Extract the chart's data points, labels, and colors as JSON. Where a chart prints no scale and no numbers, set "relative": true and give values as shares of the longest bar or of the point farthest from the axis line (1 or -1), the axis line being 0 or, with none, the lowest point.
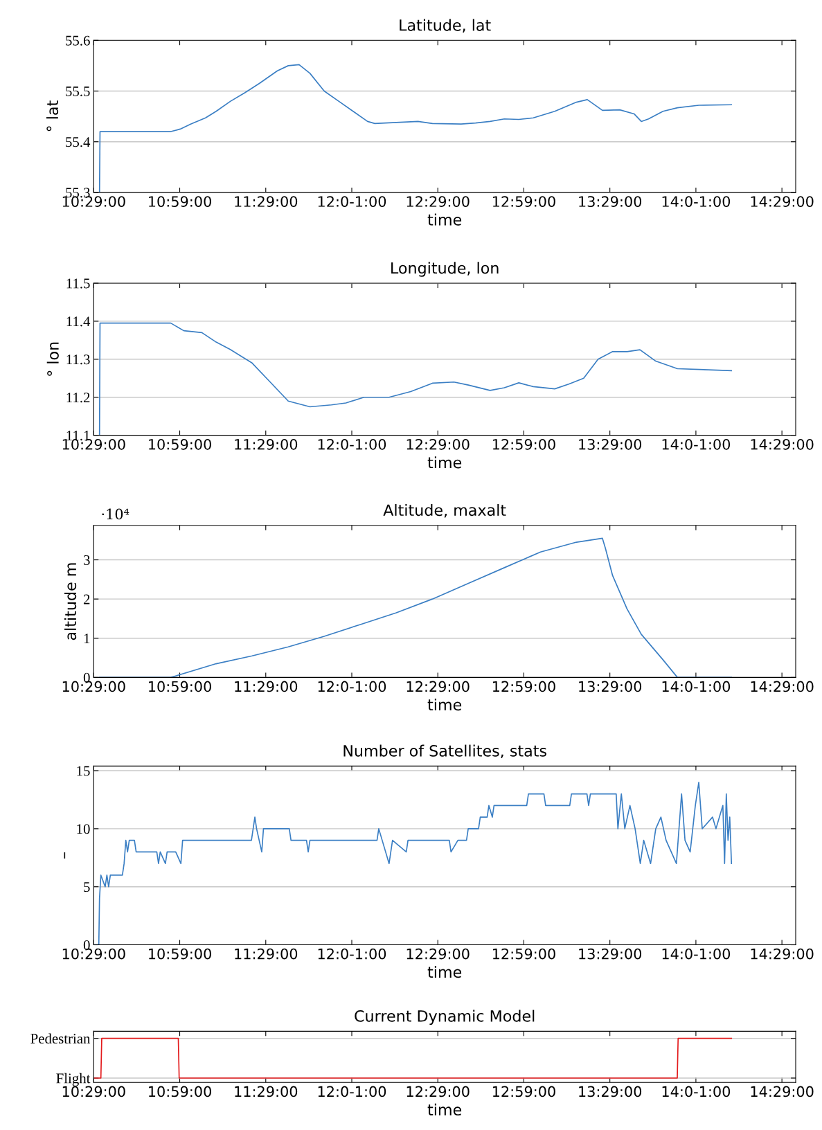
{
  "chart_data": [
    {
      "type": "line",
      "title": "Latitude, lat",
      "xlabel": "time",
      "ylabel": "° lat",
      "grid": "y",
      "xlim": [
        10.48333,
        14.56333
      ],
      "ylim": [
        55.3,
        55.6
      ],
      "yticks": [
        55.3,
        55.4,
        55.5,
        55.6
      ],
      "xticks": [
        {
          "value": 10.48333,
          "label": "10:29:00"
        },
        {
          "value": 10.98333,
          "label": "10:59:00"
        },
        {
          "value": 11.48333,
          "label": "11:29:00"
        },
        {
          "value": 11.98333,
          "label": "12:0-1:00"
        },
        {
          "value": 12.48333,
          "label": "12:29:00"
        },
        {
          "value": 12.98333,
          "label": "12:59:00"
        },
        {
          "value": 13.48333,
          "label": "13:29:00"
        },
        {
          "value": 13.98333,
          "label": "14:0-1:00"
        },
        {
          "value": 14.48333,
          "label": "14:29:00"
        }
      ],
      "series": [
        {
          "color": "#3b7fc4",
          "x": [
            10.517,
            10.52,
            10.931,
            10.986,
            11.049,
            11.133,
            11.195,
            11.279,
            11.363,
            11.446,
            11.551,
            11.614,
            11.677,
            11.74,
            11.823,
            11.907,
            11.991,
            12.075,
            12.117,
            12.242,
            12.368,
            12.452,
            12.619,
            12.703,
            12.787,
            12.87,
            12.954,
            13.038,
            13.163,
            13.289,
            13.352,
            13.44,
            13.541,
            13.624,
            13.666,
            13.708,
            13.792,
            13.876,
            14.001,
            14.19
          ],
          "values": [
            55.3,
            55.42,
            55.42,
            55.425,
            55.435,
            55.447,
            55.46,
            55.48,
            55.497,
            55.515,
            55.54,
            55.55,
            55.552,
            55.535,
            55.5,
            55.48,
            55.46,
            55.44,
            55.436,
            55.438,
            55.44,
            55.436,
            55.435,
            55.437,
            55.44,
            55.445,
            55.444,
            55.447,
            55.46,
            55.478,
            55.483,
            55.462,
            55.463,
            55.455,
            55.44,
            55.445,
            55.46,
            55.467,
            55.472,
            55.473
          ]
        }
      ]
    },
    {
      "type": "line",
      "title": "Longitude, lon",
      "xlabel": "time",
      "ylabel": "° lon",
      "grid": "y",
      "xlim": [
        10.48333,
        14.56333
      ],
      "ylim": [
        11.1,
        11.5
      ],
      "yticks": [
        11.1,
        11.2,
        11.3,
        11.4,
        11.5
      ],
      "xticks": [
        {
          "value": 10.48333,
          "label": "10:29:00"
        },
        {
          "value": 10.98333,
          "label": "10:59:00"
        },
        {
          "value": 11.48333,
          "label": "11:29:00"
        },
        {
          "value": 11.98333,
          "label": "12:0-1:00"
        },
        {
          "value": 12.48333,
          "label": "12:29:00"
        },
        {
          "value": 12.98333,
          "label": "12:59:00"
        },
        {
          "value": 13.48333,
          "label": "13:29:00"
        },
        {
          "value": 13.98333,
          "label": "14:0-1:00"
        },
        {
          "value": 14.48333,
          "label": "14:29:00"
        }
      ],
      "series": [
        {
          "color": "#3b7fc4",
          "x": [
            10.517,
            10.52,
            10.931,
            11.007,
            11.112,
            11.195,
            11.279,
            11.404,
            11.509,
            11.614,
            11.74,
            11.865,
            11.949,
            12.054,
            12.2,
            12.326,
            12.452,
            12.577,
            12.661,
            12.787,
            12.87,
            12.954,
            13.038,
            13.163,
            13.247,
            13.331,
            13.415,
            13.499,
            13.583,
            13.658,
            13.75,
            13.876,
            14.19
          ],
          "values": [
            11.1,
            11.395,
            11.395,
            11.375,
            11.37,
            11.345,
            11.325,
            11.29,
            11.24,
            11.19,
            11.175,
            11.18,
            11.185,
            11.2,
            11.2,
            11.215,
            11.237,
            11.24,
            11.232,
            11.218,
            11.225,
            11.238,
            11.228,
            11.222,
            11.235,
            11.25,
            11.3,
            11.32,
            11.32,
            11.325,
            11.295,
            11.275,
            11.27
          ]
        }
      ]
    },
    {
      "type": "line",
      "title": "Altitude, maxalt",
      "xlabel": "time",
      "ylabel": "altitude m",
      "grid": "y",
      "annotations": [
        "·10⁴"
      ],
      "xlim": [
        10.48333,
        14.56333
      ],
      "ylim": [
        0,
        3.88
      ],
      "yticks": [
        0,
        1,
        2,
        3
      ],
      "xticks": [
        {
          "value": 10.48333,
          "label": "10:29:00"
        },
        {
          "value": 10.98333,
          "label": "10:59:00"
        },
        {
          "value": 11.48333,
          "label": "11:29:00"
        },
        {
          "value": 11.98333,
          "label": "12:0-1:00"
        },
        {
          "value": 12.48333,
          "label": "12:29:00"
        },
        {
          "value": 12.98333,
          "label": "12:59:00"
        },
        {
          "value": 13.48333,
          "label": "13:29:00"
        },
        {
          "value": 13.98333,
          "label": "14:0-1:00"
        },
        {
          "value": 14.48333,
          "label": "14:29:00"
        }
      ],
      "series": [
        {
          "color": "#3b7fc4",
          "x": [
            10.517,
            10.931,
            11.195,
            11.404,
            11.614,
            11.823,
            12.033,
            12.242,
            12.452,
            12.661,
            12.87,
            13.08,
            13.289,
            13.44,
            13.457,
            13.499,
            13.583,
            13.666,
            13.792,
            13.876,
            14.19
          ],
          "values": [
            0,
            0,
            0.35,
            0.55,
            0.78,
            1.05,
            1.35,
            1.65,
            2.0,
            2.4,
            2.8,
            3.2,
            3.45,
            3.55,
            3.3,
            2.6,
            1.75,
            1.1,
            0.45,
            0,
            0
          ]
        }
      ]
    },
    {
      "type": "line",
      "title": "Number of Satellites, stats",
      "xlabel": "time",
      "ylabel": "–",
      "grid": "y",
      "xlim": [
        10.48333,
        14.56333
      ],
      "ylim": [
        0,
        15.4
      ],
      "yticks": [
        0,
        5,
        10,
        15
      ],
      "xticks": [
        {
          "value": 10.48333,
          "label": "10:29:00"
        },
        {
          "value": 10.98333,
          "label": "10:59:00"
        },
        {
          "value": 11.48333,
          "label": "11:29:00"
        },
        {
          "value": 11.98333,
          "label": "12:0-1:00"
        },
        {
          "value": 12.48333,
          "label": "12:29:00"
        },
        {
          "value": 12.98333,
          "label": "12:59:00"
        },
        {
          "value": 13.48333,
          "label": "13:29:00"
        },
        {
          "value": 13.98333,
          "label": "14:0-1:00"
        },
        {
          "value": 14.48333,
          "label": "14:29:00"
        }
      ],
      "series": [
        {
          "color": "#3b7fc4",
          "x": [
            10.48333,
            10.513,
            10.517,
            10.525,
            10.55,
            10.56,
            10.57,
            10.58,
            10.65,
            10.66,
            10.67,
            10.68,
            10.69,
            10.72,
            10.73,
            10.85,
            10.86,
            10.87,
            10.9,
            10.91,
            10.96,
            10.99,
            11.0,
            11.4,
            11.42,
            11.43,
            11.46,
            11.47,
            11.62,
            11.63,
            11.72,
            11.73,
            11.74,
            12.13,
            12.14,
            12.16,
            12.2,
            12.22,
            12.3,
            12.31,
            12.55,
            12.56,
            12.6,
            12.65,
            12.66,
            12.72,
            12.73,
            12.77,
            12.78,
            12.8,
            12.81,
            13.0,
            13.01,
            13.1,
            13.11,
            13.25,
            13.26,
            13.35,
            13.36,
            13.37,
            13.52,
            13.53,
            13.55,
            13.57,
            13.6,
            13.63,
            13.66,
            13.68,
            13.72,
            13.75,
            13.78,
            13.81,
            13.84,
            13.87,
            13.9,
            13.92,
            13.95,
            13.98,
            14.0,
            14.02,
            14.08,
            14.1,
            14.12,
            14.14,
            14.15,
            14.16,
            14.17,
            14.18,
            14.19
          ],
          "values": [
            0,
            0,
            4,
            6,
            5,
            6,
            5,
            6,
            6,
            7,
            9,
            8,
            9,
            9,
            8,
            8,
            7,
            8,
            7,
            8,
            8,
            7,
            9,
            9,
            11,
            10,
            8,
            10,
            10,
            9,
            9,
            8,
            9,
            9,
            10,
            9,
            7,
            9,
            8,
            9,
            9,
            8,
            9,
            9,
            10,
            10,
            11,
            11,
            12,
            11,
            12,
            12,
            13,
            13,
            12,
            12,
            13,
            13,
            12,
            13,
            13,
            10,
            13,
            10,
            12,
            10,
            7,
            9,
            7,
            10,
            11,
            9,
            8,
            7,
            13,
            9,
            8,
            12,
            14,
            10,
            11,
            10,
            11,
            12,
            7,
            13,
            9,
            11,
            7
          ]
        }
      ]
    },
    {
      "type": "line",
      "title": "Current Dynamic Model",
      "xlabel": "time",
      "grid": "y",
      "xlim": [
        10.48333,
        14.56333
      ],
      "relative": true,
      "annotations": [
        "Pedestrian",
        "Flight"
      ],
      "xticks": [
        {
          "value": 10.48333,
          "label": "10:29:00"
        },
        {
          "value": 10.98333,
          "label": "10:59:00"
        },
        {
          "value": 11.48333,
          "label": "11:29:00"
        },
        {
          "value": 11.98333,
          "label": "12:0-1:00"
        },
        {
          "value": 12.48333,
          "label": "12:29:00"
        },
        {
          "value": 12.98333,
          "label": "12:59:00"
        },
        {
          "value": 13.48333,
          "label": "13:29:00"
        },
        {
          "value": 13.98333,
          "label": "14:0-1:00"
        },
        {
          "value": 14.48333,
          "label": "14:29:00"
        }
      ],
      "series": [
        {
          "color": "#e31a1c",
          "x": [
            10.48333,
            10.525,
            10.53,
            10.975,
            10.98,
            13.875,
            13.88,
            14.19
          ],
          "values": [
            0,
            0,
            1,
            1,
            0,
            0,
            1,
            1
          ]
        }
      ]
    }
  ]
}
